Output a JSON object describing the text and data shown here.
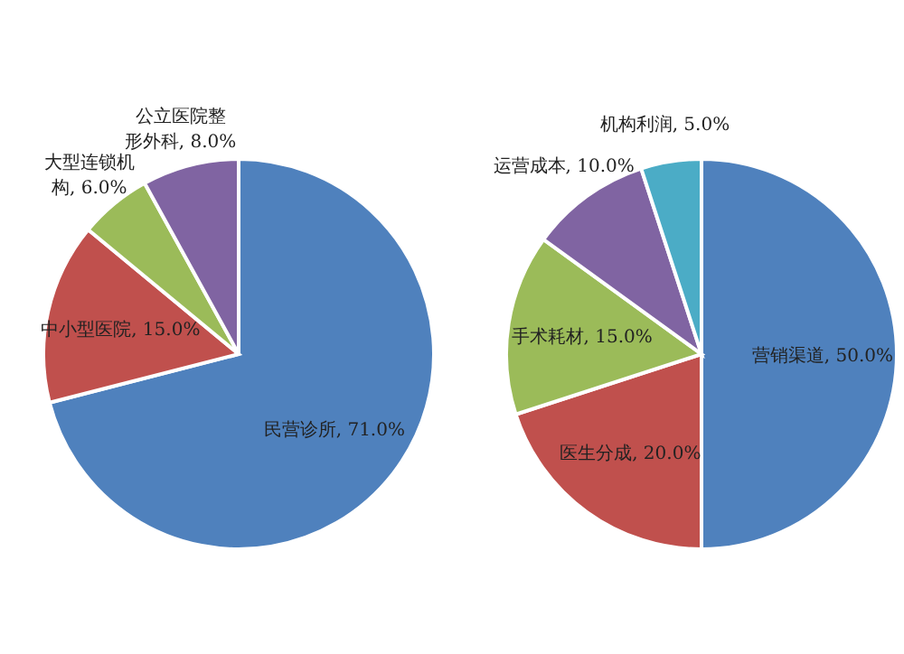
{
  "chart_data": [
    {
      "type": "pie",
      "categories": [
        "民营诊所",
        "中小型医院",
        "大型连锁机构",
        "公立医院整形外科"
      ],
      "values": [
        71.0,
        15.0,
        6.0,
        8.0
      ],
      "value_labels": [
        "71.0%",
        "15.0%",
        "6.0%",
        "8.0%"
      ],
      "colors": [
        "#4f81bd",
        "#c0504d",
        "#9bbb59",
        "#8064a2"
      ]
    },
    {
      "type": "pie",
      "categories": [
        "营销渠道",
        "医生分成",
        "手术耗材",
        "运营成本",
        "机构利润"
      ],
      "values": [
        50.0,
        20.0,
        15.0,
        10.0,
        5.0
      ],
      "value_labels": [
        "50.0%",
        "20.0%",
        "15.0%",
        "10.0%",
        "5.0%"
      ],
      "colors": [
        "#4f81bd",
        "#c0504d",
        "#9bbb59",
        "#8064a2",
        "#4bacc6"
      ]
    }
  ]
}
